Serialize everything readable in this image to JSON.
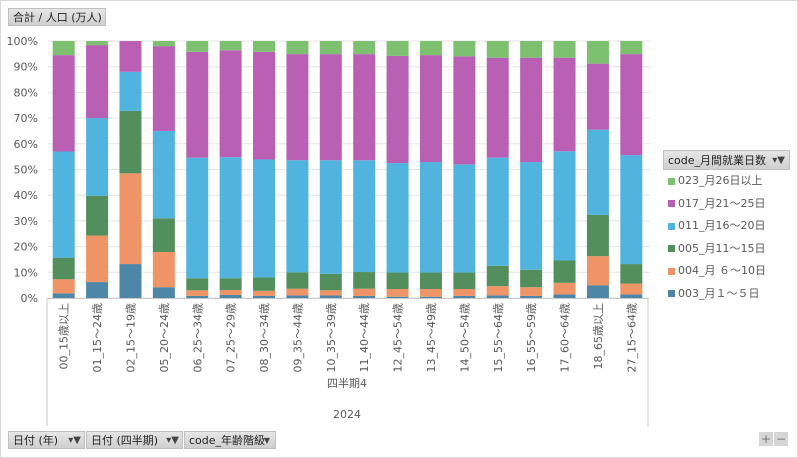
{
  "value_field": "合計 / 人口 (万人)",
  "legend_field": "code_月間就業日数",
  "filter_fields": [
    "日付 (年)",
    "日付 (四半期)",
    "code_年齢階級"
  ],
  "zoom_controls": {
    "plus": "+",
    "minus": "−"
  },
  "chart_data": {
    "type": "bar",
    "stacked": "percent",
    "title": "",
    "xlabel": "",
    "ylabel": "",
    "ylim": [
      0,
      100
    ],
    "yticks": [
      "0%",
      "10%",
      "20%",
      "30%",
      "40%",
      "50%",
      "60%",
      "70%",
      "80%",
      "90%",
      "100%"
    ],
    "grid": true,
    "legend_position": "right",
    "categories": [
      "00_15歳以上",
      "01_15～24歳",
      "02_15～19歳",
      "05_20～24歳",
      "06_25～34歳",
      "07_25～29歳",
      "08_30～34歳",
      "09_35～44歳",
      "10_35～39歳",
      "11_40～44歳",
      "12_45～54歳",
      "13_45～49歳",
      "14_50～54歳",
      "15_55～64歳",
      "16_55～59歳",
      "17_60～64歳",
      "18_65歳以上",
      "27_15～64歳"
    ],
    "category_group": "四半期4",
    "category_supergroup": "2024",
    "series": [
      {
        "name": "003_月１～５日",
        "color": "#4e86a8",
        "values": [
          1.8,
          6.2,
          13.2,
          4.2,
          0.8,
          1.2,
          0.8,
          1.0,
          1.0,
          0.8,
          0.5,
          0.5,
          0.8,
          1.0,
          0.8,
          1.4,
          4.9,
          1.4
        ]
      },
      {
        "name": "004_月 ６～10日",
        "color": "#ee9467",
        "values": [
          5.5,
          18.1,
          35.3,
          13.7,
          2.2,
          1.9,
          2.0,
          2.6,
          2.0,
          2.8,
          3.0,
          3.0,
          2.7,
          3.6,
          3.4,
          4.5,
          11.4,
          4.2
        ]
      },
      {
        "name": "005_月11～15日",
        "color": "#538f5c",
        "values": [
          8.4,
          15.5,
          24.3,
          13.1,
          4.7,
          4.6,
          5.2,
          6.4,
          6.4,
          6.5,
          6.4,
          6.4,
          6.4,
          7.9,
          6.8,
          8.7,
          16.1,
          7.6
        ]
      },
      {
        "name": "011_月16～20日",
        "color": "#50b4de",
        "values": [
          41.3,
          30.2,
          15.2,
          34.0,
          46.9,
          47.1,
          45.9,
          43.6,
          44.2,
          43.5,
          42.6,
          43.0,
          42.1,
          42.1,
          41.9,
          42.5,
          33.1,
          42.4
        ]
      },
      {
        "name": "017_月21～25日",
        "color": "#b960b5",
        "values": [
          37.5,
          28.4,
          12.0,
          33.0,
          41.2,
          41.6,
          41.9,
          41.3,
          41.3,
          41.3,
          41.7,
          41.6,
          42.0,
          38.9,
          40.6,
          36.4,
          25.7,
          39.3
        ]
      },
      {
        "name": "023_月26日以上",
        "color": "#7cc070",
        "values": [
          5.5,
          1.6,
          0.0,
          2.0,
          4.2,
          3.6,
          4.2,
          5.1,
          5.1,
          5.1,
          5.8,
          5.5,
          6.0,
          6.5,
          6.5,
          6.5,
          8.8,
          5.1
        ]
      }
    ]
  }
}
